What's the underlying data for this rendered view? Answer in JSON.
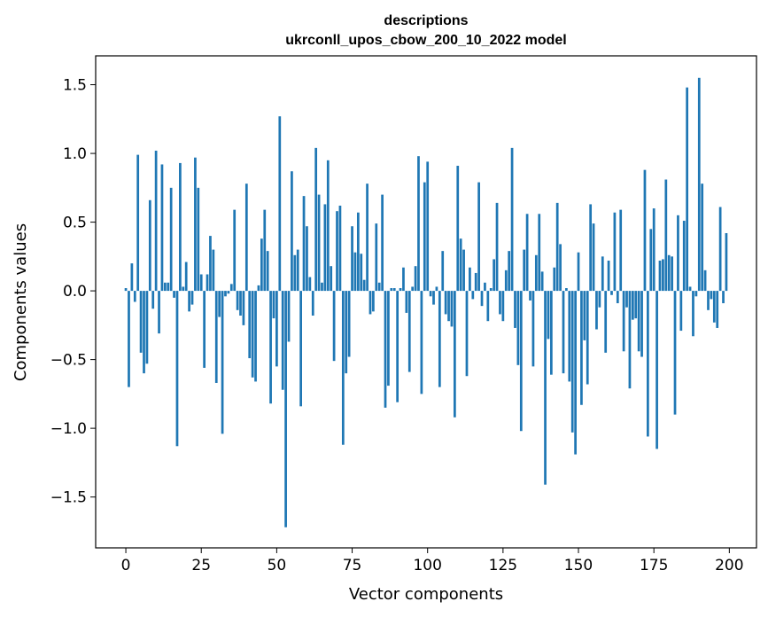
{
  "chart_data": {
    "type": "bar",
    "title": [
      "descriptions",
      "ukrconll_upos_cbow_200_10_2022 model"
    ],
    "xlabel": "Vector components",
    "ylabel": "Components values",
    "xlim": [
      -10,
      209
    ],
    "ylim": [
      -1.87,
      1.71
    ],
    "xticks": [
      0,
      25,
      50,
      75,
      100,
      125,
      150,
      175,
      200
    ],
    "yticks": [
      -1.5,
      -1.0,
      -0.5,
      0.0,
      0.5,
      1.0,
      1.5
    ],
    "ytick_labels": [
      "−1.5",
      "−1.0",
      "−0.5",
      "0.0",
      "0.5",
      "1.0",
      "1.5"
    ],
    "grid": false,
    "bar_color": "#1f77b4",
    "x": [
      0,
      1,
      2,
      3,
      4,
      5,
      6,
      7,
      8,
      9,
      10,
      11,
      12,
      13,
      14,
      15,
      16,
      17,
      18,
      19,
      20,
      21,
      22,
      23,
      24,
      25,
      26,
      27,
      28,
      29,
      30,
      31,
      32,
      33,
      34,
      35,
      36,
      37,
      38,
      39,
      40,
      41,
      42,
      43,
      44,
      45,
      46,
      47,
      48,
      49,
      50,
      51,
      52,
      53,
      54,
      55,
      56,
      57,
      58,
      59,
      60,
      61,
      62,
      63,
      64,
      65,
      66,
      67,
      68,
      69,
      70,
      71,
      72,
      73,
      74,
      75,
      76,
      77,
      78,
      79,
      80,
      81,
      82,
      83,
      84,
      85,
      86,
      87,
      88,
      89,
      90,
      91,
      92,
      93,
      94,
      95,
      96,
      97,
      98,
      99,
      100,
      101,
      102,
      103,
      104,
      105,
      106,
      107,
      108,
      109,
      110,
      111,
      112,
      113,
      114,
      115,
      116,
      117,
      118,
      119,
      120,
      121,
      122,
      123,
      124,
      125,
      126,
      127,
      128,
      129,
      130,
      131,
      132,
      133,
      134,
      135,
      136,
      137,
      138,
      139,
      140,
      141,
      142,
      143,
      144,
      145,
      146,
      147,
      148,
      149,
      150,
      151,
      152,
      153,
      154,
      155,
      156,
      157,
      158,
      159,
      160,
      161,
      162,
      163,
      164,
      165,
      166,
      167,
      168,
      169,
      170,
      171,
      172,
      173,
      174,
      175,
      176,
      177,
      178,
      179,
      180,
      181,
      182,
      183,
      184,
      185,
      186,
      187,
      188,
      189,
      190,
      191,
      192,
      193,
      194,
      195,
      196,
      197,
      198,
      199
    ],
    "values": [
      0.02,
      -0.7,
      0.2,
      -0.08,
      0.99,
      -0.45,
      -0.6,
      -0.53,
      0.66,
      -0.13,
      1.02,
      -0.31,
      0.92,
      0.06,
      0.06,
      0.75,
      -0.05,
      -1.13,
      0.93,
      0.03,
      0.21,
      -0.15,
      -0.1,
      0.97,
      0.75,
      0.12,
      -0.56,
      0.12,
      0.4,
      0.3,
      -0.67,
      -0.19,
      -1.04,
      -0.04,
      -0.02,
      0.05,
      0.59,
      -0.14,
      -0.18,
      -0.25,
      0.78,
      -0.49,
      -0.63,
      -0.66,
      0.04,
      0.38,
      0.59,
      0.29,
      -0.82,
      -0.2,
      -0.55,
      1.27,
      -0.72,
      -1.72,
      -0.37,
      0.87,
      0.26,
      0.3,
      -0.84,
      0.69,
      0.47,
      0.1,
      -0.18,
      1.04,
      0.7,
      0.06,
      0.63,
      0.95,
      0.18,
      -0.51,
      0.58,
      0.62,
      -1.12,
      -0.6,
      -0.48,
      0.47,
      0.28,
      0.57,
      0.27,
      0.08,
      0.78,
      -0.17,
      -0.15,
      0.49,
      0.06,
      0.7,
      -0.85,
      -0.69,
      0.02,
      0.02,
      -0.81,
      0.02,
      0.17,
      -0.16,
      -0.59,
      0.03,
      0.18,
      0.98,
      -0.75,
      0.79,
      0.94,
      -0.04,
      -0.1,
      0.03,
      -0.7,
      0.29,
      -0.17,
      -0.22,
      -0.26,
      -0.92,
      0.91,
      0.38,
      0.3,
      -0.62,
      0.17,
      -0.06,
      0.13,
      0.79,
      -0.11,
      0.06,
      -0.22,
      0.02,
      0.23,
      0.64,
      -0.17,
      -0.22,
      0.15,
      0.29,
      1.04,
      -0.27,
      -0.54,
      -1.02,
      0.3,
      0.56,
      -0.07,
      -0.55,
      0.26,
      0.56,
      0.14,
      -1.41,
      -0.35,
      -0.61,
      0.17,
      0.64,
      0.34,
      -0.6,
      0.02,
      -0.66,
      -1.03,
      -1.19,
      0.28,
      -0.83,
      -0.36,
      -0.68,
      0.63,
      0.49,
      -0.28,
      -0.12,
      0.25,
      -0.45,
      0.22,
      -0.03,
      0.57,
      -0.09,
      0.59,
      -0.44,
      -0.12,
      -0.71,
      -0.21,
      -0.2,
      -0.44,
      -0.48,
      0.88,
      -1.06,
      0.45,
      0.6,
      -1.15,
      0.22,
      0.23,
      0.81,
      0.26,
      0.25,
      -0.9,
      0.55,
      -0.29,
      0.51,
      1.48,
      0.03,
      -0.33,
      -0.04,
      1.55,
      0.78,
      0.15,
      -0.14,
      -0.06,
      -0.23,
      -0.27,
      0.61,
      -0.09,
      0.42
    ]
  }
}
